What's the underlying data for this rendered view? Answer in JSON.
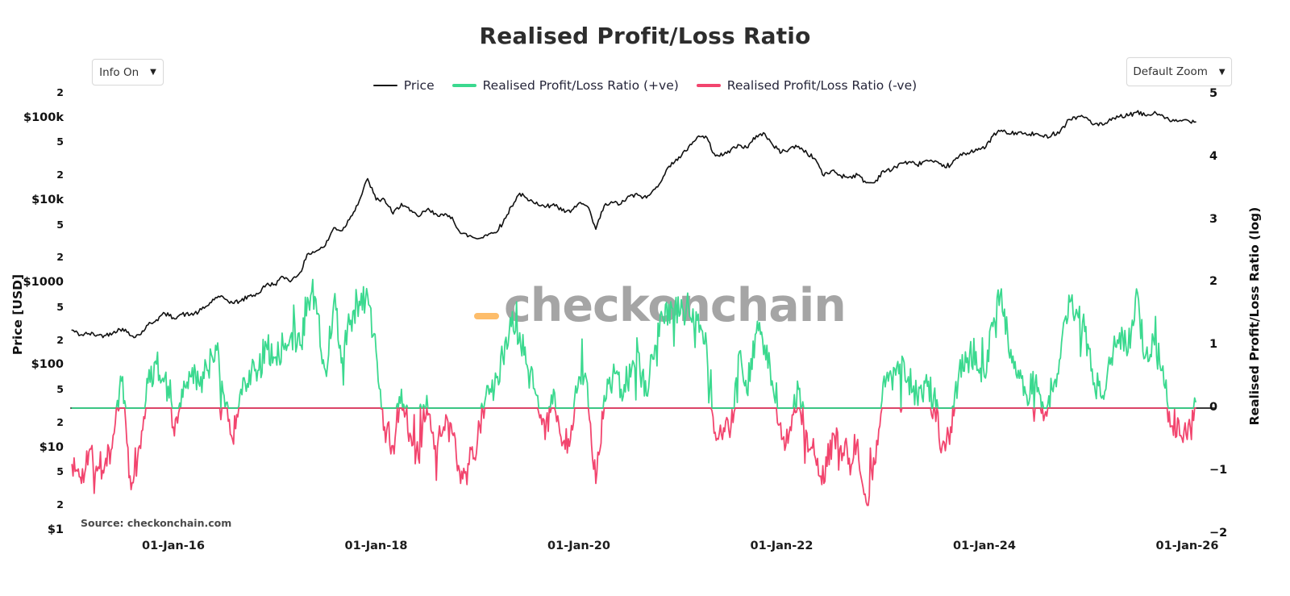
{
  "header": {
    "title": "Realised Profit/Loss Ratio"
  },
  "controls": {
    "info_dropdown": {
      "label": "Info On",
      "caret": "▼"
    },
    "zoom_dropdown": {
      "label": "Default Zoom",
      "caret": "▼"
    }
  },
  "legend": {
    "items": [
      {
        "label": "Price",
        "color": "#111111",
        "thick": false
      },
      {
        "label": "Realised Profit/Loss Ratio (+ve)",
        "color": "#3bd98f",
        "thick": true
      },
      {
        "label": "Realised Profit/Loss Ratio (-ve)",
        "color": "#f2456e",
        "thick": true
      }
    ]
  },
  "source_note": "Source: checkonchain.com",
  "watermark": {
    "text": "checkonchain",
    "dash_color": "#fdbd6b",
    "text_color": "#a5a5a5"
  },
  "chart_data": {
    "type": "line",
    "title": "Realised Profit/Loss Ratio",
    "grid": false,
    "legend_position": "top-center",
    "x_axis": {
      "start_year_month": "2015-01",
      "step": "1 month",
      "ticks": [
        {
          "label": "01-Jan-16",
          "t": 2016
        },
        {
          "label": "01-Jan-18",
          "t": 2018
        },
        {
          "label": "01-Jan-20",
          "t": 2020
        },
        {
          "label": "01-Jan-22",
          "t": 2022
        },
        {
          "label": "01-Jan-24",
          "t": 2024
        },
        {
          "label": "01-Jan-26",
          "t": 2026
        }
      ]
    },
    "y_left": {
      "label": "Price [USD]",
      "scale": "log",
      "range_usd": [
        1,
        220000
      ],
      "ticks": [
        {
          "label": "$1",
          "v": 1,
          "major": true
        },
        {
          "label": "2",
          "v": 2
        },
        {
          "label": "5",
          "v": 5
        },
        {
          "label": "$10",
          "v": 10,
          "major": true
        },
        {
          "label": "2",
          "v": 20
        },
        {
          "label": "5",
          "v": 50
        },
        {
          "label": "$100",
          "v": 100,
          "major": true
        },
        {
          "label": "2",
          "v": 200
        },
        {
          "label": "5",
          "v": 500
        },
        {
          "label": "$1000",
          "v": 1000,
          "major": true
        },
        {
          "label": "2",
          "v": 2000
        },
        {
          "label": "5",
          "v": 5000
        },
        {
          "label": "$10k",
          "v": 10000,
          "major": true
        },
        {
          "label": "2",
          "v": 20000
        },
        {
          "label": "5",
          "v": 50000
        },
        {
          "label": "$100k",
          "v": 100000,
          "major": true
        },
        {
          "label": "2",
          "v": 200000
        }
      ]
    },
    "y_right": {
      "label": "Realised Profit/Loss Ratio (log)",
      "scale": "linear",
      "range": [
        -2,
        5
      ],
      "ticks": [
        {
          "label": "5",
          "v": 5
        },
        {
          "label": "4",
          "v": 4
        },
        {
          "label": "3",
          "v": 3
        },
        {
          "label": "2",
          "v": 2
        },
        {
          "label": "1",
          "v": 1
        },
        {
          "label": "0",
          "v": 0
        },
        {
          "label": "−1",
          "v": -1
        },
        {
          "label": "−2",
          "v": -2
        }
      ]
    },
    "series": [
      {
        "name": "Price",
        "axis": "left",
        "color": "#111111",
        "values_usd_monthly": [
          270,
          235,
          245,
          235,
          232,
          260,
          282,
          230,
          236,
          312,
          360,
          430,
          380,
          420,
          415,
          448,
          530,
          670,
          655,
          575,
          610,
          700,
          742,
          960,
          970,
          1190,
          1080,
          1350,
          2300,
          2480,
          2870,
          4700,
          4340,
          6450,
          9900,
          18500,
          10200,
          10300,
          6900,
          9250,
          7500,
          6400,
          7750,
          7000,
          6600,
          6300,
          4000,
          3750,
          3450,
          3850,
          4100,
          5300,
          8550,
          12300,
          10000,
          9600,
          8300,
          9150,
          7550,
          7200,
          9350,
          8550,
          4500,
          8650,
          9450,
          9150,
          11350,
          11650,
          10800,
          13800,
          19700,
          29000,
          33100,
          45200,
          58800,
          60600,
          37300,
          35000,
          41600,
          47150,
          43800,
          61300,
          65000,
          46200,
          38500,
          43200,
          45500,
          37650,
          31800,
          19950,
          23300,
          20050,
          19400,
          20500,
          16500,
          16550,
          23100,
          23150,
          28450,
          29250,
          27200,
          30450,
          29250,
          26000,
          26950,
          34650,
          37700,
          42250,
          42550,
          61150,
          71300,
          63800,
          67500,
          62750,
          64600,
          58950,
          63300,
          70200,
          96400,
          104000,
          102400,
          84350,
          82550,
          94200,
          104600,
          107100,
          117500,
          108200,
          114000,
          110000,
          91000,
          92000,
          95000,
          90000
        ]
      },
      {
        "name": "Realised Profit/Loss Ratio (+ve)",
        "axis": "right",
        "color": "#3bd98f",
        "derived": "max(ratio_log10, 0)"
      },
      {
        "name": "Realised Profit/Loss Ratio (-ve)",
        "axis": "right",
        "color": "#f2456e",
        "derived": "min(ratio_log10, 0)"
      }
    ],
    "ratio_log10_monthly": [
      -0.9,
      -1.1,
      -0.7,
      -1.0,
      -0.8,
      -0.4,
      0.5,
      -1.3,
      -0.6,
      0.4,
      0.7,
      0.5,
      -0.3,
      0.3,
      0.5,
      0.4,
      0.6,
      1.0,
      0.2,
      -0.5,
      0.3,
      0.6,
      0.6,
      1.0,
      0.8,
      1.0,
      1.2,
      1.0,
      1.7,
      1.5,
      0.6,
      1.7,
      0.8,
      1.4,
      1.7,
      1.8,
      0.9,
      -0.3,
      -0.6,
      0.3,
      -0.4,
      -0.8,
      0.2,
      -0.6,
      -0.3,
      -0.4,
      -1.2,
      -0.9,
      -0.5,
      0.2,
      0.3,
      0.8,
      1.3,
      1.2,
      0.6,
      0.2,
      -0.5,
      0.3,
      -0.6,
      -0.5,
      0.5,
      0.4,
      -1.2,
      0.2,
      0.5,
      0.3,
      0.7,
      0.9,
      0.2,
      1.0,
      1.4,
      1.6,
      1.5,
      1.6,
      1.4,
      1.2,
      -0.4,
      -0.5,
      -0.3,
      0.9,
      0.2,
      1.2,
      1.0,
      0.3,
      -0.5,
      -0.3,
      0.3,
      -0.4,
      -0.8,
      -1.2,
      -0.4,
      -0.6,
      -0.8,
      -0.5,
      -1.5,
      -0.9,
      0.4,
      0.5,
      0.7,
      0.5,
      0.2,
      0.4,
      0.2,
      -0.6,
      -0.3,
      0.6,
      0.8,
      0.9,
      0.5,
      1.3,
      1.9,
      0.8,
      0.6,
      0.2,
      0.4,
      -0.2,
      0.3,
      0.8,
      1.8,
      1.5,
      1.3,
      0.4,
      0.2,
      0.8,
      1.2,
      0.9,
      1.9,
      0.8,
      1.1,
      0.6,
      -0.3,
      -0.2,
      -0.5,
      0.1
    ]
  }
}
